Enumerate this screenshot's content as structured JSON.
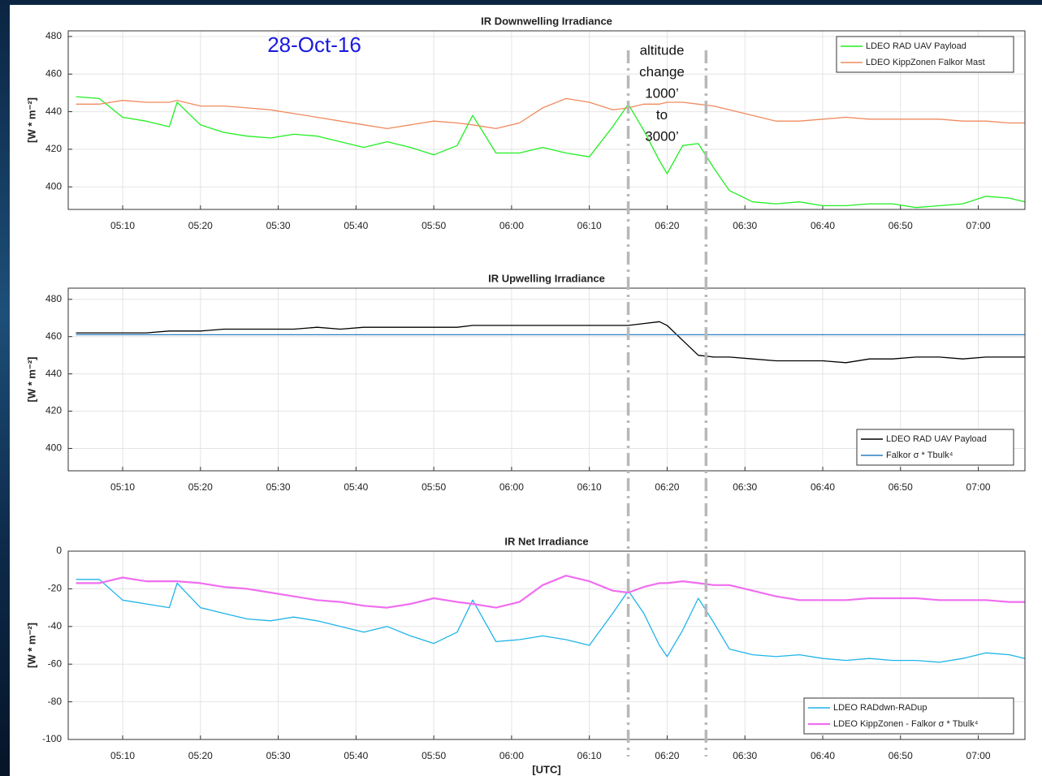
{
  "chart_data": [
    {
      "type": "line",
      "title": "IR Downwelling Irradiance",
      "ylabel": "[W * m⁻²]",
      "x": [
        "05:04",
        "05:07",
        "05:10",
        "05:13",
        "05:16",
        "05:17",
        "05:20",
        "05:23",
        "05:26",
        "05:29",
        "05:32",
        "05:35",
        "05:38",
        "05:41",
        "05:44",
        "05:47",
        "05:50",
        "05:53",
        "05:55",
        "05:58",
        "06:01",
        "06:04",
        "06:07",
        "06:10",
        "06:13",
        "06:15",
        "06:17",
        "06:19",
        "06:20",
        "06:22",
        "06:24",
        "06:26",
        "06:28",
        "06:31",
        "06:34",
        "06:37",
        "06:40",
        "06:43",
        "06:46",
        "06:49",
        "06:52",
        "06:55",
        "06:58",
        "07:01",
        "07:04",
        "07:06"
      ],
      "series": [
        {
          "name": "LDEO RAD UAV Payload",
          "color": "#22ee22",
          "values": [
            448,
            447,
            437,
            435,
            432,
            445,
            433,
            429,
            427,
            426,
            428,
            427,
            424,
            421,
            424,
            421,
            417,
            422,
            438,
            418,
            418,
            421,
            418,
            416,
            432,
            444,
            430,
            414,
            407,
            422,
            423,
            410,
            398,
            392,
            391,
            392,
            390,
            390,
            391,
            391,
            389,
            390,
            391,
            395,
            394,
            392
          ]
        },
        {
          "name": "LDEO KippZonen Falkor Mast",
          "color": "#f08a5d",
          "values": [
            444,
            444,
            446,
            445,
            445,
            446,
            443,
            443,
            442,
            441,
            439,
            437,
            435,
            433,
            431,
            433,
            435,
            434,
            433,
            431,
            434,
            442,
            447,
            445,
            441,
            442,
            444,
            444,
            445,
            445,
            444,
            443,
            441,
            438,
            435,
            435,
            436,
            437,
            436,
            436,
            436,
            436,
            435,
            435,
            434,
            434
          ]
        }
      ],
      "xlim": [
        "05:03",
        "07:06"
      ],
      "xticks": [
        "05:10",
        "05:20",
        "05:30",
        "05:40",
        "05:50",
        "06:00",
        "06:10",
        "06:20",
        "06:30",
        "06:40",
        "06:50",
        "07:00"
      ],
      "ylim": [
        388,
        483
      ],
      "yticks": [
        400,
        420,
        440,
        460,
        480
      ],
      "grid": true,
      "legend": "upper right",
      "date_label": "28-Oct-16",
      "note": [
        "altitude",
        "change",
        "1000’",
        "to",
        "3000’"
      ],
      "vlines": [
        "06:15",
        "06:25"
      ]
    },
    {
      "type": "line",
      "title": "IR Upwelling Irradiance",
      "ylabel": "[W * m⁻²]",
      "x": [
        "05:04",
        "05:07",
        "05:10",
        "05:13",
        "05:16",
        "05:17",
        "05:20",
        "05:23",
        "05:26",
        "05:29",
        "05:32",
        "05:35",
        "05:38",
        "05:41",
        "05:44",
        "05:47",
        "05:50",
        "05:53",
        "05:55",
        "05:58",
        "06:01",
        "06:04",
        "06:07",
        "06:10",
        "06:13",
        "06:15",
        "06:17",
        "06:19",
        "06:20",
        "06:22",
        "06:24",
        "06:26",
        "06:28",
        "06:31",
        "06:34",
        "06:37",
        "06:40",
        "06:43",
        "06:46",
        "06:49",
        "06:52",
        "06:55",
        "06:58",
        "07:01",
        "07:04",
        "07:06"
      ],
      "series": [
        {
          "name": "LDEO RAD UAV Payload",
          "color": "#000000",
          "values": [
            462,
            462,
            462,
            462,
            463,
            463,
            463,
            464,
            464,
            464,
            464,
            465,
            464,
            465,
            465,
            465,
            465,
            465,
            466,
            466,
            466,
            466,
            466,
            466,
            466,
            466,
            467,
            468,
            466,
            458,
            450,
            449,
            449,
            448,
            447,
            447,
            447,
            446,
            448,
            448,
            449,
            449,
            448,
            449,
            449,
            449
          ]
        },
        {
          "name": "Falkor σ * Tbulk⁴",
          "color": "#2a7fc0",
          "values": [
            461,
            461,
            461,
            461,
            461,
            461,
            461,
            461,
            461,
            461,
            461,
            461,
            461,
            461,
            461,
            461,
            461,
            461,
            461,
            461,
            461,
            461,
            461,
            461,
            461,
            461,
            461,
            461,
            461,
            461,
            461,
            461,
            461,
            461,
            461,
            461,
            461,
            461,
            461,
            461,
            461,
            461,
            461,
            461,
            461,
            461
          ]
        }
      ],
      "xlim": [
        "05:03",
        "07:06"
      ],
      "xticks": [
        "05:10",
        "05:20",
        "05:30",
        "05:40",
        "05:50",
        "06:00",
        "06:10",
        "06:20",
        "06:30",
        "06:40",
        "06:50",
        "07:00"
      ],
      "ylim": [
        388,
        486
      ],
      "yticks": [
        400,
        420,
        440,
        460,
        480
      ],
      "grid": true,
      "legend": "lower right"
    },
    {
      "type": "line",
      "title": "IR Net Irradiance",
      "ylabel": "[W * m⁻²]",
      "xlabel": "[UTC]",
      "x": [
        "05:04",
        "05:07",
        "05:10",
        "05:13",
        "05:16",
        "05:17",
        "05:20",
        "05:23",
        "05:26",
        "05:29",
        "05:32",
        "05:35",
        "05:38",
        "05:41",
        "05:44",
        "05:47",
        "05:50",
        "05:53",
        "05:55",
        "05:58",
        "06:01",
        "06:04",
        "06:07",
        "06:10",
        "06:13",
        "06:15",
        "06:17",
        "06:19",
        "06:20",
        "06:22",
        "06:24",
        "06:26",
        "06:28",
        "06:31",
        "06:34",
        "06:37",
        "06:40",
        "06:43",
        "06:46",
        "06:49",
        "06:52",
        "06:55",
        "06:58",
        "07:01",
        "07:04",
        "07:06"
      ],
      "series": [
        {
          "name": "LDEO RADdwn-RADup",
          "color": "#1fb4e8",
          "values": [
            -15,
            -15,
            -26,
            -28,
            -30,
            -17,
            -30,
            -33,
            -36,
            -37,
            -35,
            -37,
            -40,
            -43,
            -40,
            -45,
            -49,
            -43,
            -26,
            -48,
            -47,
            -45,
            -47,
            -50,
            -33,
            -21,
            -33,
            -50,
            -56,
            -42,
            -25,
            -38,
            -52,
            -55,
            -56,
            -55,
            -57,
            -58,
            -57,
            -58,
            -58,
            -59,
            -57,
            -54,
            -55,
            -57
          ]
        },
        {
          "name": "LDEO KippZonen - Falkor σ * Tbulk⁴",
          "color": "#f06ef0",
          "values": [
            -17,
            -17,
            -14,
            -16,
            -16,
            -16,
            -17,
            -19,
            -20,
            -22,
            -24,
            -26,
            -27,
            -29,
            -30,
            -28,
            -25,
            -27,
            -28,
            -30,
            -27,
            -18,
            -13,
            -16,
            -21,
            -22,
            -19,
            -17,
            -17,
            -16,
            -17,
            -18,
            -18,
            -21,
            -24,
            -26,
            -26,
            -26,
            -25,
            -25,
            -25,
            -26,
            -26,
            -26,
            -27,
            -27
          ]
        }
      ],
      "xlim": [
        "05:03",
        "07:06"
      ],
      "xticks": [
        "05:10",
        "05:20",
        "05:30",
        "05:40",
        "05:50",
        "06:00",
        "06:10",
        "06:20",
        "06:30",
        "06:40",
        "06:50",
        "07:00"
      ],
      "ylim": [
        -100,
        0
      ],
      "yticks": [
        -100,
        -80,
        -60,
        -40,
        -20,
        0
      ],
      "grid": true,
      "legend": "lower right"
    }
  ]
}
